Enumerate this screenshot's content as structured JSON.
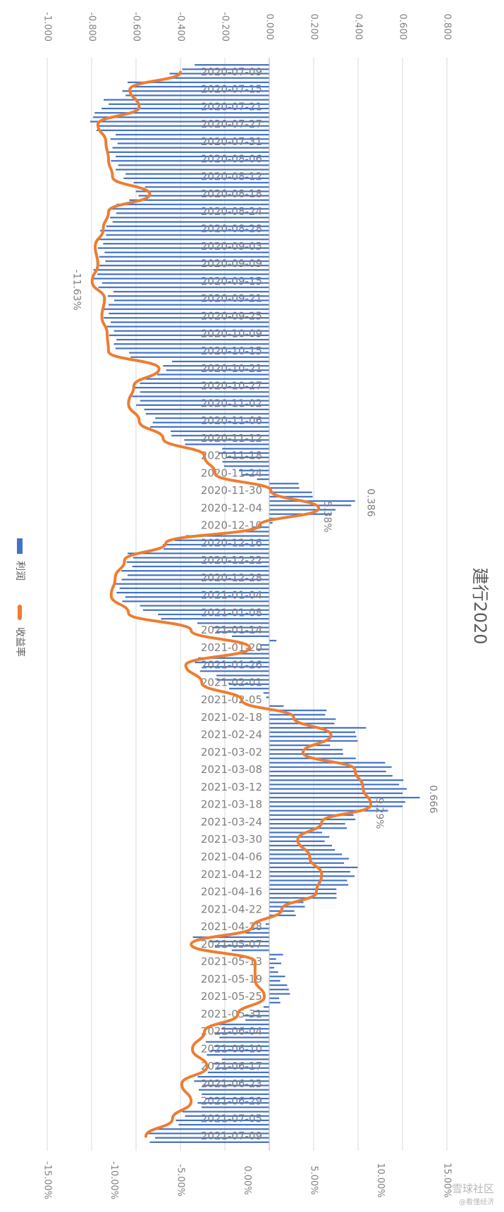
{
  "chart_data": {
    "type": "bar+line",
    "title": "建行2020",
    "orientation": "rotated-90-clockwise",
    "profit_axis": {
      "ticks": [
        "-1.000",
        "-0.800",
        "-0.600",
        "-0.400",
        "-0.200",
        "0.000",
        "0.200",
        "0.400",
        "0.600",
        "0.800"
      ],
      "range": [
        -1.0,
        0.8
      ]
    },
    "return_axis": {
      "ticks": [
        "-15.00%",
        "-10.00%",
        "-5.00%",
        "0.00%",
        "5.00%",
        "10.00%",
        "15.00%"
      ],
      "range": [
        -15,
        15
      ]
    },
    "categories": [
      "2020-07-09",
      "2020-07-15",
      "2020-07-21",
      "2020-07-27",
      "2020-07-31",
      "2020-08-06",
      "2020-08-12",
      "2020-08-18",
      "2020-08-24",
      "2020-08-28",
      "2020-09-03",
      "2020-09-09",
      "2020-09-15",
      "2020-09-21",
      "2020-09-25",
      "2020-10-09",
      "2020-10-15",
      "2020-10-21",
      "2020-10-27",
      "2020-11-02",
      "2020-11-06",
      "2020-11-12",
      "2020-11-18",
      "2020-11-24",
      "2020-11-30",
      "2020-12-04",
      "2020-12-10",
      "2020-12-16",
      "2020-12-22",
      "2020-12-28",
      "2021-01-04",
      "2021-01-08",
      "2021-01-14",
      "2021-01-20",
      "2021-01-26",
      "2021-02-01",
      "2021-02-05",
      "2021-02-18",
      "2021-02-24",
      "2021-03-02",
      "2021-03-08",
      "2021-03-12",
      "2021-03-18",
      "2021-03-24",
      "2021-03-30",
      "2021-04-06",
      "2021-04-12",
      "2021-04-16",
      "2021-04-22",
      "2021-04-28",
      "2021-05-07",
      "2021-05-13",
      "2021-05-19",
      "2021-05-25",
      "2021-05-31",
      "2021-06-04",
      "2021-06-10",
      "2021-06-17",
      "2021-06-23",
      "2021-06-29",
      "2021-07-05",
      "2021-07-09"
    ],
    "series": [
      {
        "name": "利润",
        "type": "bar",
        "color": "#4472c4",
        "values": [
          -0.36,
          -0.62,
          -0.74,
          -0.8,
          -0.71,
          -0.7,
          -0.68,
          -0.56,
          -0.7,
          -0.73,
          -0.76,
          -0.76,
          -0.78,
          -0.72,
          -0.73,
          -0.72,
          -0.7,
          -0.45,
          -0.58,
          -0.6,
          -0.55,
          -0.45,
          -0.23,
          -0.18,
          0.12,
          0.386,
          0.06,
          -0.4,
          -0.62,
          -0.66,
          -0.68,
          -0.6,
          -0.3,
          0.02,
          -0.32,
          -0.25,
          -0.05,
          0.24,
          0.43,
          0.28,
          0.54,
          0.58,
          0.666,
          0.38,
          0.25,
          0.32,
          0.38,
          0.35,
          0.16,
          0.02,
          -0.32,
          0.05,
          0.04,
          0.1,
          -0.05,
          -0.22,
          -0.28,
          -0.22,
          -0.34,
          -0.28,
          -0.38,
          -0.52
        ]
      },
      {
        "name": "收益率",
        "type": "line",
        "color": "#ed7d31",
        "values": [
          -5.0,
          -8.8,
          -8.1,
          -11.2,
          -10.6,
          -10.4,
          -10.1,
          -7.3,
          -10.4,
          -10.8,
          -11.4,
          -11.2,
          -11.63,
          -10.7,
          -10.9,
          -10.5,
          -10.4,
          -6.6,
          -8.5,
          -8.9,
          -8.1,
          -6.3,
          -3.2,
          -2.4,
          1.8,
          5.38,
          0.9,
          -6.1,
          -9.2,
          -9.9,
          -10.2,
          -8.9,
          -4.2,
          0.2,
          -4.6,
          -3.4,
          -0.4,
          3.5,
          6.3,
          4.2,
          8.1,
          8.7,
          9.29,
          5.6,
          3.8,
          4.7,
          5.6,
          5.2,
          2.6,
          0.4,
          -4.2,
          0.6,
          0.6,
          1.3,
          -0.7,
          -3.2,
          -4.1,
          -3.0,
          -4.9,
          -4.2,
          -5.6,
          -7.6
        ]
      }
    ],
    "data_labels": [
      {
        "text": "0.386",
        "series": "利润",
        "category": "2020-12-04"
      },
      {
        "text": "5.38%",
        "series": "收益率",
        "category": "2020-12-04"
      },
      {
        "text": "0.666",
        "series": "利润",
        "category": "2021-03-18"
      },
      {
        "text": "9.29%",
        "series": "收益率",
        "category": "2021-03-18"
      },
      {
        "text": "-11.63%",
        "series": "收益率",
        "category": "2020-09-15"
      }
    ],
    "legend": {
      "placement": "left",
      "items": [
        "利润",
        "收益率"
      ]
    },
    "grid": true
  },
  "watermark": {
    "line1": "雪球社区",
    "line2": "@看懂经济"
  }
}
